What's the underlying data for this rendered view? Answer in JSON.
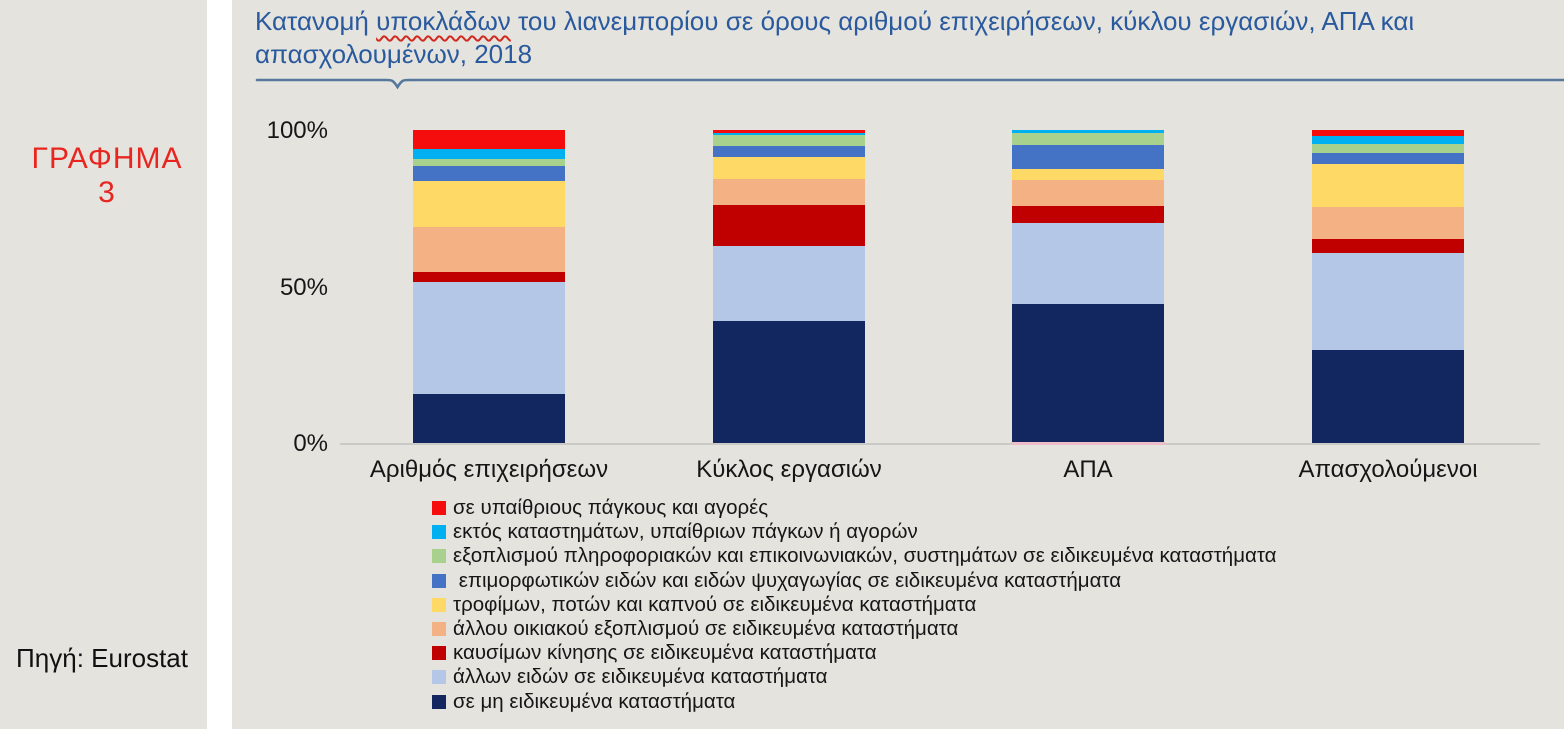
{
  "sidebar": {
    "figure_label": "ΓΡΑΦΗΜΑ 3",
    "source_label": "Πηγή: Eurostat"
  },
  "title": {
    "part1": "Κατανομή ",
    "misspelled_word": "υποκλάδων",
    "part2": " του λιανεμπορίου σε όρους αριθμού επιχειρήσεων, κύκλου εργασιών, ΑΠΑ και απασχολουμένων, 2018",
    "color": "#2a5a9e"
  },
  "chart_data": {
    "type": "bar",
    "stacked": true,
    "units": "percent",
    "ylim": [
      0,
      100
    ],
    "grid": false,
    "legend_position": "bottom",
    "y_ticks": [
      {
        "label": "100%",
        "value": 100
      },
      {
        "label": "50%",
        "value": 50
      },
      {
        "label": "0%",
        "value": 0
      }
    ],
    "categories": [
      "Αριθμός επιχειρήσεων",
      "Κύκλος εργασιών",
      "ΑΠΑ",
      "Απασχολούμενοι"
    ],
    "series": [
      {
        "name": "σε μη ειδικευμένα καταστήματα",
        "color": "#12275f",
        "values": [
          15.8,
          38.9,
          44.3,
          29.8
        ]
      },
      {
        "name": "άλλων ειδών σε ειδικευμένα καταστήματα",
        "color": "#b4c7e7",
        "values": [
          35.6,
          23.9,
          25.8,
          30.9
        ]
      },
      {
        "name": "καυσίμων κίνησης σε ειδικευμένα καταστήματα",
        "color": "#c00000",
        "values": [
          3.2,
          13.1,
          5.4,
          4.3
        ]
      },
      {
        "name": "άλλου οικιακού εξοπλισμού σε ειδικευμένα καταστήματα",
        "color": "#f4b183",
        "values": [
          14.4,
          8.4,
          8.2,
          10.2
        ]
      },
      {
        "name": "τροφίμων, ποτών και καπνού σε ειδικευμένα καταστήματα",
        "color": "#ffd966",
        "values": [
          14.8,
          7.2,
          3.5,
          13.7
        ]
      },
      {
        "name": " επιμορφωτικών ειδών και ειδών ψυχαγωγίας σε ειδικευμένα καταστήματα",
        "color": "#4472c4",
        "values": [
          4.8,
          3.4,
          7.9,
          3.7
        ]
      },
      {
        "name": "εξοπλισμού πληροφοριακών και επικοινωνιακών, συστημάτων σε ειδικευμένα καταστήματα",
        "color": "#a9d18e",
        "values": [
          2.1,
          3.5,
          3.7,
          2.7
        ]
      },
      {
        "name": "εκτός καταστημάτων, υπαίθριων πάγκων ή αγορών",
        "color": "#00b0f0",
        "values": [
          3.2,
          0.7,
          0.9,
          2.7
        ]
      },
      {
        "name": "σε υπαίθριους πάγκους και αγορές",
        "color": "#f50d0d",
        "values": [
          6.2,
          0.9,
          0.0,
          1.9
        ]
      }
    ],
    "legend_order": "reverse_of_stack",
    "baseline_accent": {
      "category_index": 2,
      "color": "#edbdca"
    }
  }
}
